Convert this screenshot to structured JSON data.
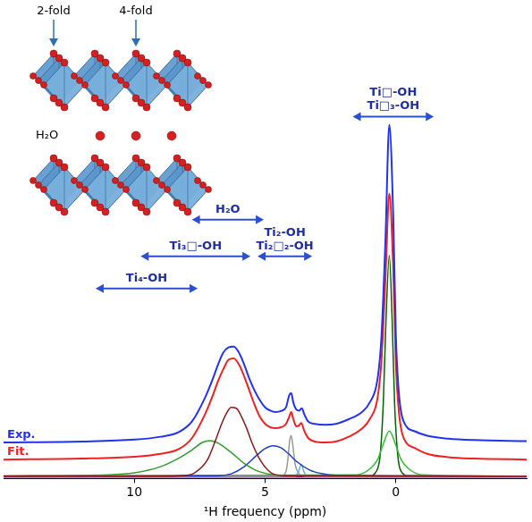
{
  "chart_data": {
    "type": "line",
    "x_label": "¹H frequency (ppm)",
    "xlim": [
      15,
      -5
    ],
    "xticks": [
      10,
      5,
      0
    ],
    "ylim": [
      0,
      100
    ],
    "tick_labels": "x",
    "grid": false,
    "series": [
      {
        "name": "Exp.",
        "color": "#2233ee",
        "x": [
          15,
          12,
          10,
          9,
          8.3,
          7.8,
          7.3,
          7,
          6.8,
          6.6,
          6.4,
          6.2,
          6,
          5.8,
          5.6,
          5.4,
          5.2,
          5,
          4.8,
          4.6,
          4.4,
          4.2,
          4.08,
          4,
          3.92,
          3.8,
          3.7,
          3.6,
          3.5,
          3.35,
          3.1,
          2.7,
          2.3,
          1.8,
          1.3,
          1,
          0.7,
          0.55,
          0.4,
          0.25,
          0.1,
          0,
          -0.1,
          -0.2,
          -0.4,
          -0.7,
          -1.2,
          -2,
          -3,
          -5
        ],
        "values": [
          7.6,
          7.8,
          8.2,
          8.8,
          9.8,
          12,
          17,
          21,
          24,
          26.5,
          27.6,
          27.8,
          26.5,
          24,
          21,
          18.5,
          16.5,
          15,
          14.3,
          14,
          14.2,
          15,
          17.5,
          18,
          16,
          14.5,
          14.3,
          14.8,
          13.5,
          12,
          11.5,
          11.3,
          11.5,
          12.5,
          14,
          16,
          21,
          30,
          50,
          74.5,
          55,
          30,
          19,
          14,
          11,
          10,
          9,
          8.4,
          8.1,
          7.9
        ]
      },
      {
        "name": "Fit.",
        "color": "#ee2222",
        "x": [
          15,
          12,
          10,
          9,
          8.3,
          7.8,
          7.3,
          7,
          6.8,
          6.6,
          6.4,
          6.2,
          6,
          5.8,
          5.6,
          5.4,
          5.2,
          5,
          4.8,
          4.6,
          4.4,
          4.2,
          4.08,
          4,
          3.92,
          3.8,
          3.7,
          3.62,
          3.5,
          3.35,
          3.1,
          2.7,
          2.3,
          1.8,
          1.3,
          1,
          0.7,
          0.55,
          0.4,
          0.25,
          0.1,
          0,
          -0.1,
          -0.2,
          -0.4,
          -0.7,
          -1.2,
          -2,
          -3,
          -5
        ],
        "values": [
          4,
          4.2,
          4.6,
          5.2,
          6.2,
          8.5,
          13.5,
          17.5,
          20.5,
          23,
          25,
          25.3,
          24,
          21.5,
          18.5,
          15.5,
          13,
          11.5,
          10.8,
          10.6,
          10.8,
          11.5,
          13,
          14,
          12.5,
          11,
          11.2,
          11.7,
          10,
          8.5,
          7.8,
          7.6,
          7.8,
          8.8,
          10.5,
          12.5,
          17,
          25,
          42,
          60,
          44,
          24,
          15,
          10.5,
          7.5,
          6.5,
          5.2,
          4.5,
          4.2,
          4
        ]
      },
      {
        "color": "#8b1a1a",
        "x": [
          15,
          9,
          8.2,
          7.7,
          7.2,
          6.9,
          6.7,
          6.5,
          6.3,
          6.1,
          5.9,
          5.7,
          5.5,
          5.2,
          4.9,
          4.7,
          4.2,
          -5
        ],
        "values": [
          0.5,
          0.5,
          0.6,
          1.2,
          4,
          8,
          11,
          13.5,
          15,
          14.8,
          13,
          10.5,
          7.5,
          4,
          1.8,
          1,
          0.6,
          0.5
        ]
      },
      {
        "color": "#2e9b2e",
        "x": [
          15,
          11,
          10,
          9,
          8.4,
          7.8,
          7.4,
          7.1,
          6.8,
          6.3,
          5.8,
          5.3,
          4.8,
          3.8,
          -5
        ],
        "values": [
          0.6,
          0.8,
          1.2,
          2.5,
          4,
          6,
          7.6,
          8,
          7.5,
          5.5,
          3.2,
          1.6,
          0.9,
          0.6,
          0.5
        ]
      },
      {
        "color": "#1f3fbf",
        "x": [
          15,
          6.8,
          6.3,
          5.8,
          5.3,
          5,
          4.7,
          4.4,
          4.1,
          3.8,
          3.3,
          2.8,
          2.3,
          -5
        ],
        "values": [
          0.5,
          0.6,
          1,
          2.5,
          5,
          6.3,
          6.9,
          6.5,
          5.2,
          3.6,
          1.8,
          1,
          0.7,
          0.5
        ]
      },
      {
        "color": "#999999",
        "x": [
          15,
          4.4,
          4.2,
          4.12,
          4.06,
          4,
          3.94,
          3.85,
          3.7,
          3.5,
          -5
        ],
        "values": [
          0.5,
          0.5,
          1.5,
          4.5,
          8,
          9,
          7,
          3,
          1,
          0.5,
          0.5
        ]
      },
      {
        "color": "#6fa8dc",
        "x": [
          15,
          3.85,
          3.72,
          3.62,
          3.52,
          3.4,
          -5
        ],
        "values": [
          0.5,
          0.5,
          1.5,
          3,
          1.5,
          0.5,
          0.5
        ]
      },
      {
        "color": "#33bb33",
        "x": [
          15,
          1.5,
          1,
          0.7,
          0.5,
          0.25,
          0,
          -0.2,
          -0.5,
          -1,
          -5
        ],
        "values": [
          0.5,
          0.8,
          2,
          4,
          7,
          10,
          7,
          4,
          2,
          0.8,
          0.5
        ]
      },
      {
        "color": "#006400",
        "x": [
          15,
          1,
          0.75,
          0.6,
          0.48,
          0.38,
          0.25,
          0.14,
          0.05,
          -0.07,
          -0.2,
          -0.5,
          -5
        ],
        "values": [
          0.5,
          0.6,
          1.5,
          5,
          16,
          33,
          47,
          33,
          16,
          5,
          1.5,
          0.6,
          0.5
        ]
      },
      {
        "color": "#7b2d8b",
        "x": [
          15,
          -5
        ],
        "values": [
          0.3,
          0.3
        ]
      }
    ],
    "annotations": [
      {
        "lines": [
          "Ti□-OH",
          "Ti□₃-OH"
        ],
        "x": [
          1.65,
          -1.45
        ],
        "y": 76.2,
        "color": "#1f2fa0"
      },
      {
        "lines": [
          "H₂O"
        ],
        "x": [
          7.8,
          5.05
        ],
        "y": 54.5,
        "color": "#1f2fa0"
      },
      {
        "lines": [
          "Ti₃□-OH"
        ],
        "x": [
          9.76,
          5.56
        ],
        "y": 46.8,
        "color": "#1f2fa0"
      },
      {
        "lines": [
          "Ti₂-OH",
          "Ti₂□₂-OH"
        ],
        "x": [
          5.29,
          3.2
        ],
        "y": 46.8,
        "color": "#1f2fa0"
      },
      {
        "lines": [
          "Ti₄-OH"
        ],
        "x": [
          11.48,
          7.58
        ],
        "y": 40,
        "color": "#1f2fa0"
      }
    ]
  },
  "inset": {
    "fold_labels": [
      "2-fold",
      "4-fold"
    ],
    "water_label": "H₂O"
  }
}
